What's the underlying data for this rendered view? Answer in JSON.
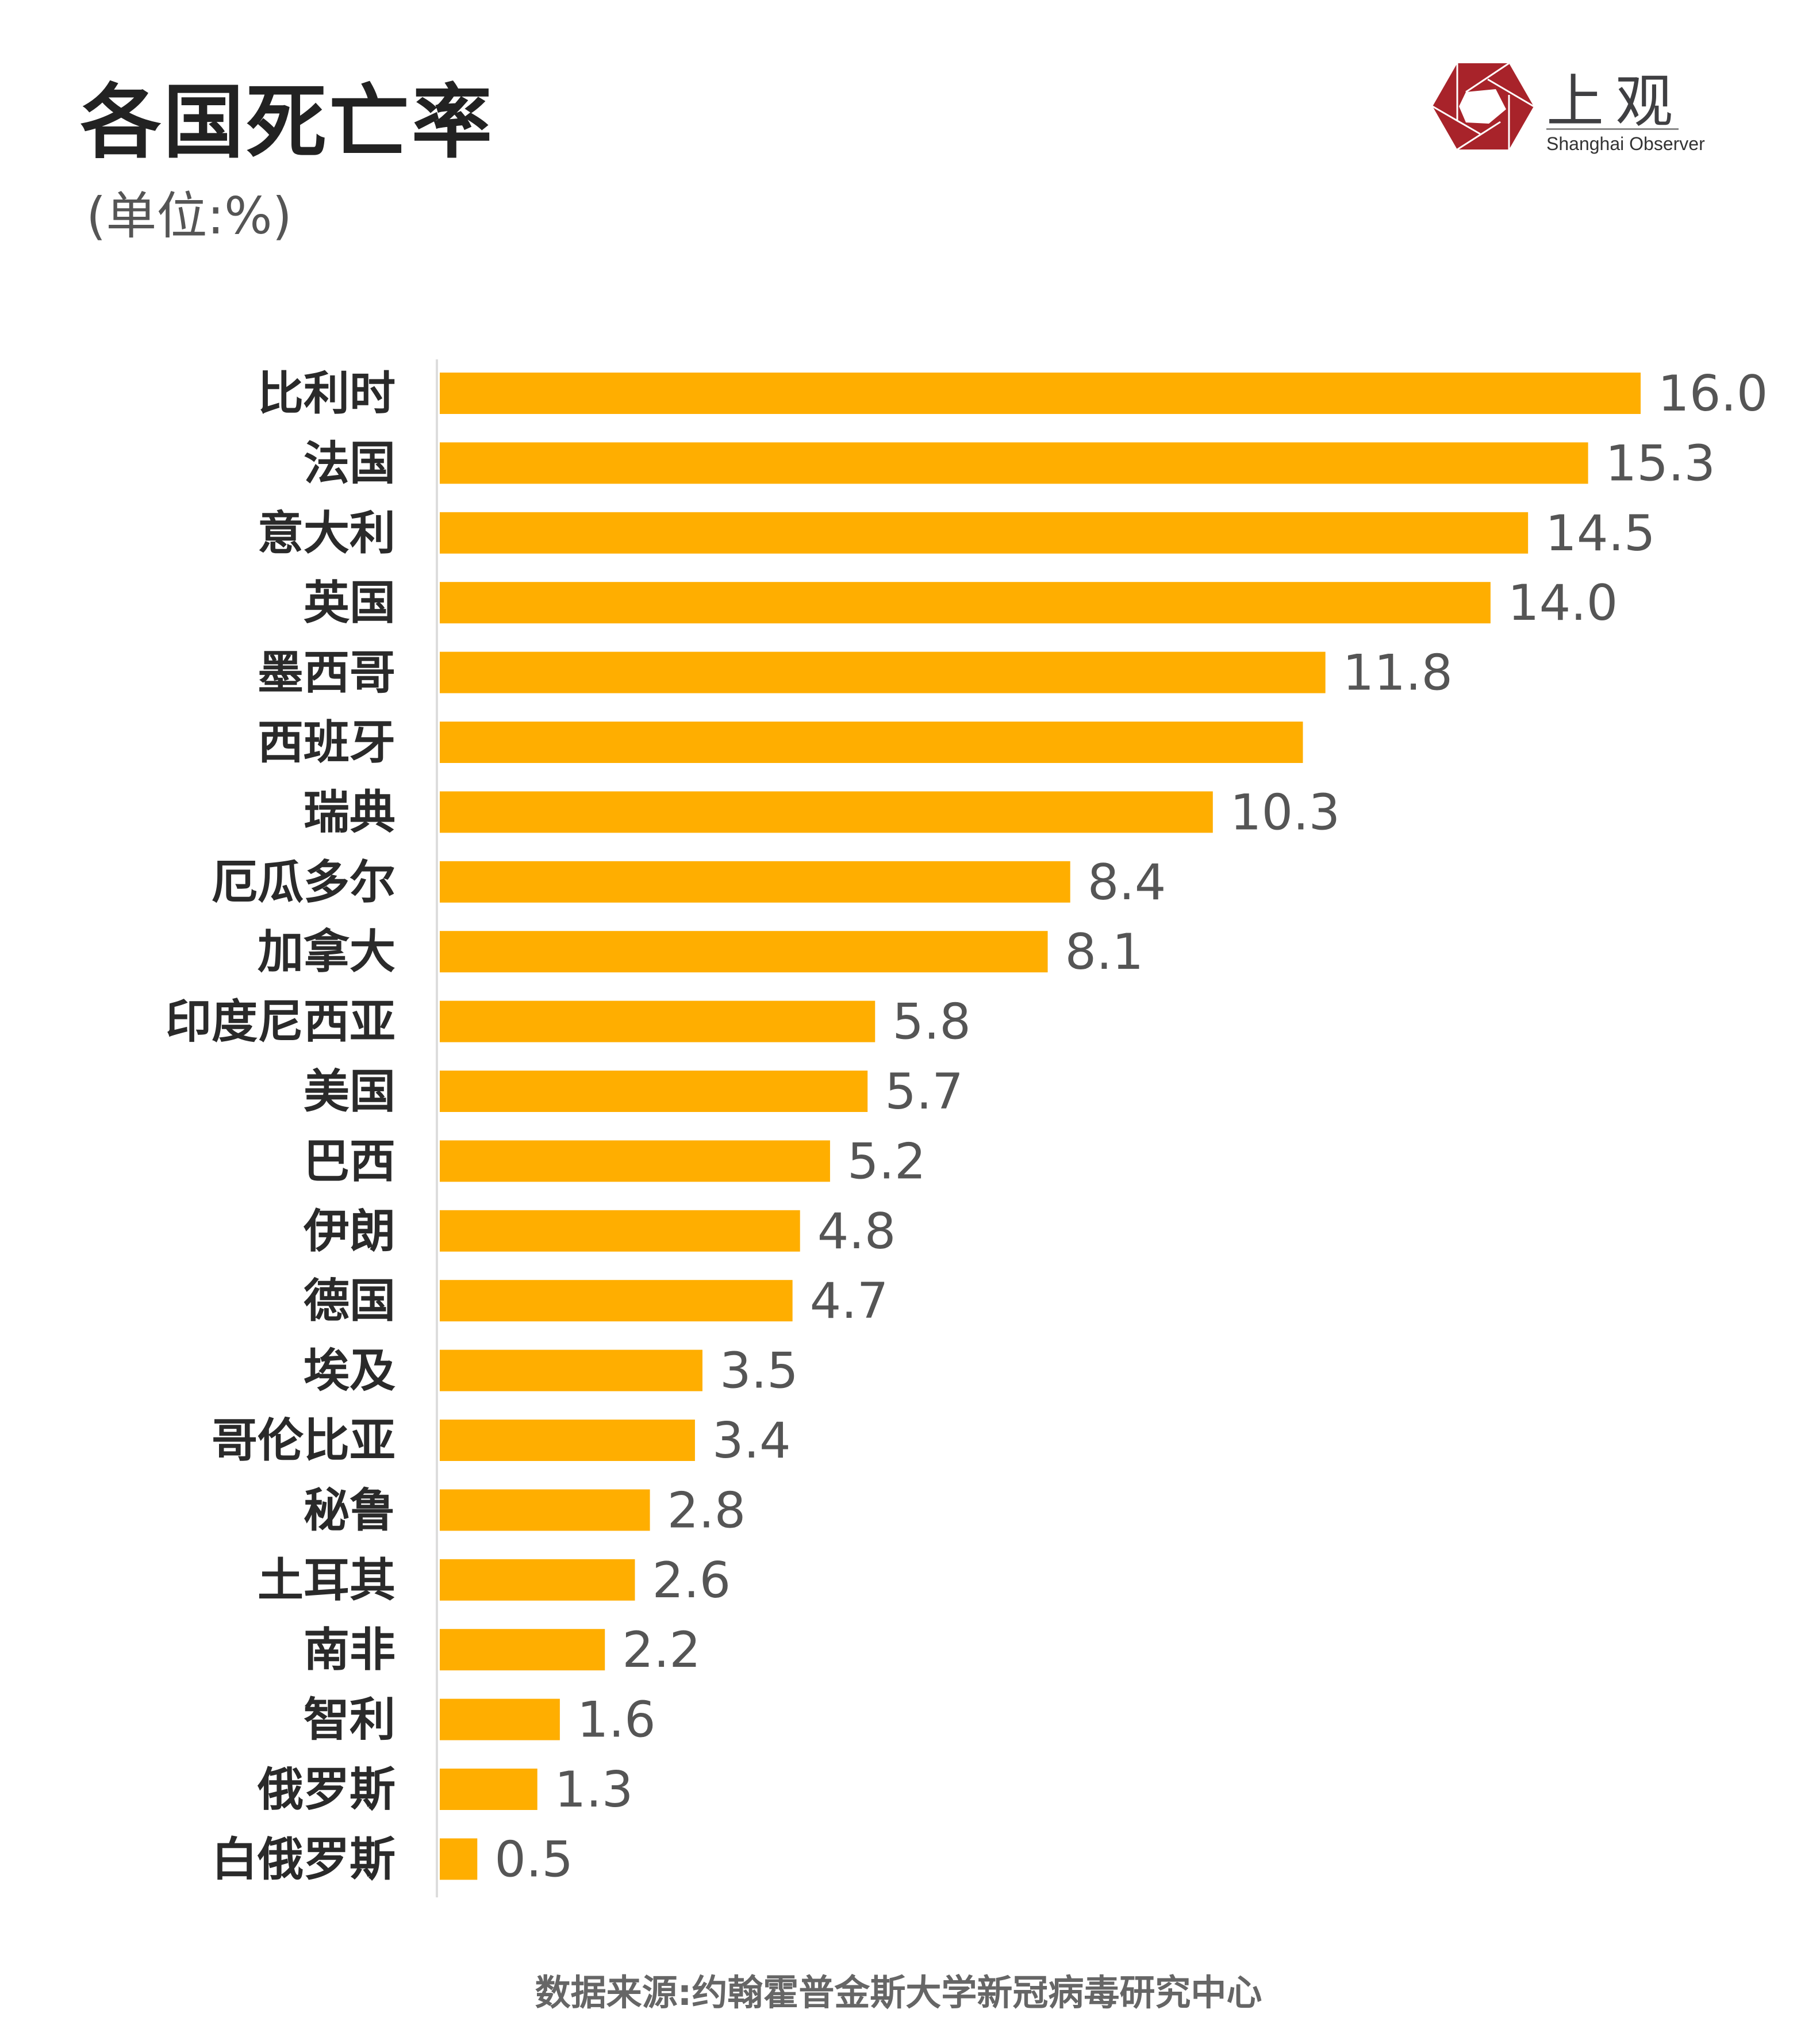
{
  "header": {
    "title": "各国死亡率",
    "subtitle": "(单位:%)"
  },
  "logo": {
    "name_cn": "上观",
    "name_en": "Shanghai Observer",
    "color": "#a8232a"
  },
  "footer": {
    "source": "数据来源:约翰霍普金斯大学新冠病毒研究中心"
  },
  "chart_data": {
    "type": "bar",
    "orientation": "horizontal",
    "title": "各国死亡率",
    "unit": "%",
    "bar_color": "#ffae00",
    "grid": false,
    "categories": [
      "比利时",
      "法国",
      "意大利",
      "英国",
      "墨西哥",
      "西班牙",
      "瑞典",
      "厄瓜多尔",
      "加拿大",
      "印度尼西亚",
      "美国",
      "巴西",
      "伊朗",
      "德国",
      "埃及",
      "哥伦比亚",
      "秘鲁",
      "土耳其",
      "南非",
      "智利",
      "俄罗斯",
      "白俄罗斯"
    ],
    "values": [
      16.0,
      15.3,
      14.5,
      14.0,
      11.8,
      11.5,
      10.3,
      8.4,
      8.1,
      5.8,
      5.7,
      5.2,
      4.8,
      4.7,
      3.5,
      3.4,
      2.8,
      2.6,
      2.2,
      1.6,
      1.3,
      0.5
    ],
    "data_labels": [
      "16.0",
      "15.3",
      "14.5",
      "14.0",
      "11.8",
      "",
      "10.3",
      "8.4",
      "8.1",
      "5.8",
      "5.7",
      "5.2",
      "4.8",
      "4.7",
      "3.5",
      "3.4",
      "2.8",
      "2.6",
      "2.2",
      "1.6",
      "1.3",
      "0.5"
    ],
    "xlim": [
      0,
      16
    ]
  }
}
